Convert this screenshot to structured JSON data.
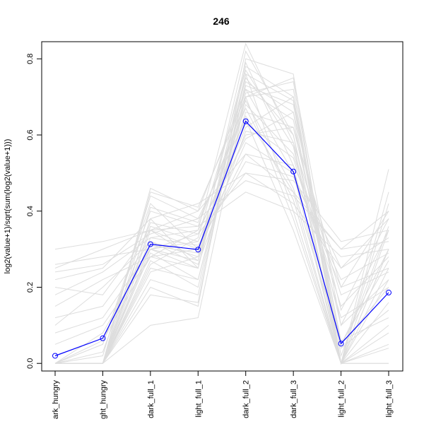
{
  "chart_data": {
    "type": "line",
    "title": "246",
    "xlabel": "",
    "ylabel": "log2(value+1)/sqrt(sum(log2(value+1)))",
    "categories": [
      "dark_hungry",
      "light_hungry",
      "dark_full_1",
      "light_full_1",
      "dark_full_2",
      "dark_full_3",
      "light_full_2",
      "light_full_3"
    ],
    "category_labels_visible": [
      "ark_hungry",
      "ght_hungry",
      "dark_full_1",
      "light_full_1",
      "dark_full_2",
      "dark_full_3",
      "light_full_2",
      "light_full_3"
    ],
    "ylim": [
      -0.02,
      0.845
    ],
    "yticks": [
      0.0,
      0.2,
      0.4,
      0.6,
      0.8
    ],
    "ytick_labels": [
      "0.0",
      "0.2",
      "0.4",
      "0.6",
      "0.8"
    ],
    "grid": false,
    "legend": "none",
    "highlight_series": {
      "values": [
        0.02,
        0.066,
        0.313,
        0.299,
        0.636,
        0.504,
        0.052,
        0.186
      ],
      "color": "#0000ff",
      "marker": "open-circle"
    },
    "background_series_color": "#dddddd",
    "background_series": [
      [
        0.0,
        0.0,
        0.3,
        0.25,
        0.78,
        0.7,
        0.05,
        0.3
      ],
      [
        0.0,
        0.0,
        0.25,
        0.22,
        0.7,
        0.75,
        0.1,
        0.35
      ],
      [
        0.25,
        0.3,
        0.35,
        0.4,
        0.55,
        0.45,
        0.3,
        0.4
      ],
      [
        0.3,
        0.32,
        0.35,
        0.36,
        0.45,
        0.4,
        0.28,
        0.3
      ],
      [
        0.22,
        0.25,
        0.38,
        0.42,
        0.5,
        0.42,
        0.25,
        0.38
      ],
      [
        0.0,
        0.05,
        0.42,
        0.3,
        0.65,
        0.45,
        0.0,
        0.25
      ],
      [
        0.0,
        0.0,
        0.46,
        0.4,
        0.72,
        0.5,
        0.0,
        0.0
      ],
      [
        0.1,
        0.2,
        0.32,
        0.28,
        0.68,
        0.55,
        0.15,
        0.28
      ],
      [
        0.0,
        0.0,
        0.2,
        0.15,
        0.8,
        0.76,
        0.0,
        0.05
      ],
      [
        0.05,
        0.1,
        0.28,
        0.25,
        0.75,
        0.6,
        0.05,
        0.2
      ],
      [
        0.0,
        0.0,
        0.33,
        0.35,
        0.84,
        0.58,
        0.0,
        0.0
      ],
      [
        0.0,
        0.08,
        0.3,
        0.32,
        0.6,
        0.62,
        0.2,
        0.4
      ],
      [
        0.26,
        0.28,
        0.3,
        0.34,
        0.5,
        0.48,
        0.32,
        0.35
      ],
      [
        0.0,
        0.0,
        0.1,
        0.12,
        0.7,
        0.72,
        0.0,
        0.51
      ],
      [
        0.0,
        0.0,
        0.38,
        0.25,
        0.76,
        0.4,
        0.0,
        0.45
      ],
      [
        0.0,
        0.0,
        0.27,
        0.2,
        0.73,
        0.68,
        0.06,
        0.12
      ],
      [
        0.2,
        0.18,
        0.35,
        0.3,
        0.58,
        0.5,
        0.2,
        0.25
      ],
      [
        0.0,
        0.02,
        0.44,
        0.38,
        0.64,
        0.35,
        0.0,
        0.3
      ],
      [
        0.0,
        0.0,
        0.26,
        0.33,
        0.77,
        0.57,
        0.0,
        0.16
      ],
      [
        0.08,
        0.12,
        0.3,
        0.27,
        0.66,
        0.62,
        0.1,
        0.22
      ],
      [
        0.0,
        0.0,
        0.36,
        0.32,
        0.62,
        0.7,
        0.0,
        0.1
      ],
      [
        0.15,
        0.22,
        0.28,
        0.3,
        0.55,
        0.52,
        0.25,
        0.33
      ],
      [
        0.0,
        0.0,
        0.22,
        0.18,
        0.74,
        0.66,
        0.0,
        0.42
      ],
      [
        0.0,
        0.05,
        0.4,
        0.36,
        0.69,
        0.46,
        0.05,
        0.27
      ],
      [
        0.0,
        0.0,
        0.31,
        0.29,
        0.79,
        0.52,
        0.0,
        0.08
      ],
      [
        0.24,
        0.26,
        0.34,
        0.38,
        0.48,
        0.44,
        0.3,
        0.32
      ],
      [
        0.0,
        0.0,
        0.29,
        0.22,
        0.71,
        0.74,
        0.02,
        0.36
      ],
      [
        0.0,
        0.03,
        0.37,
        0.34,
        0.63,
        0.54,
        0.12,
        0.2
      ],
      [
        0.0,
        0.0,
        0.18,
        0.16,
        0.76,
        0.69,
        0.0,
        0.3
      ],
      [
        0.12,
        0.15,
        0.32,
        0.26,
        0.61,
        0.58,
        0.18,
        0.24
      ],
      [
        0.0,
        0.0,
        0.41,
        0.37,
        0.67,
        0.43,
        0.0,
        0.35
      ],
      [
        0.0,
        0.0,
        0.24,
        0.28,
        0.82,
        0.6,
        0.0,
        0.04
      ],
      [
        0.18,
        0.24,
        0.33,
        0.31,
        0.53,
        0.49,
        0.22,
        0.29
      ],
      [
        0.0,
        0.0,
        0.35,
        0.27,
        0.72,
        0.64,
        0.04,
        0.14
      ],
      [
        0.0,
        0.06,
        0.28,
        0.35,
        0.59,
        0.66,
        0.14,
        0.38
      ],
      [
        0.0,
        0.0,
        0.45,
        0.41,
        0.7,
        0.38,
        0.0,
        0.22
      ]
    ]
  }
}
